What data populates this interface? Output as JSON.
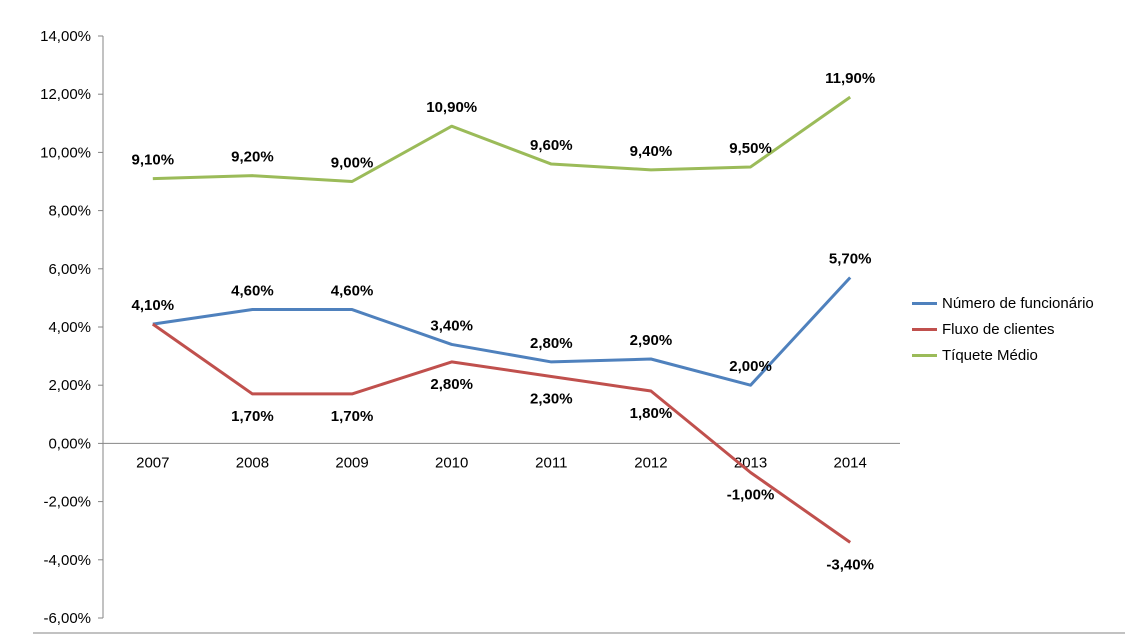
{
  "chart_data": {
    "type": "line",
    "categories": [
      "2007",
      "2008",
      "2009",
      "2010",
      "2011",
      "2012",
      "2013",
      "2014"
    ],
    "y_ticks": [
      "14,00%",
      "12,00%",
      "10,00%",
      "8,00%",
      "6,00%",
      "4,00%",
      "2,00%",
      "0,00%",
      "-2,00%",
      "-4,00%",
      "-6,00%"
    ],
    "ylim": [
      -6,
      14
    ],
    "legend_position": "right",
    "grid": false,
    "series": [
      {
        "name": "Número de funcionário",
        "color": "#4F81BD",
        "values": [
          4.1,
          4.6,
          4.6,
          3.4,
          2.8,
          2.9,
          2.0,
          5.7
        ],
        "labels": [
          "4,10%",
          "4,60%",
          "4,60%",
          "3,40%",
          "2,80%",
          "2,90%",
          "2,00%",
          "5,70%"
        ]
      },
      {
        "name": "Fluxo de clientes",
        "color": "#C0504D",
        "values": [
          4.1,
          1.7,
          1.7,
          2.8,
          2.3,
          1.8,
          -1.0,
          -3.4
        ],
        "labels": [
          "",
          "1,70%",
          "1,70%",
          "2,80%",
          "2,30%",
          "1,80%",
          "-1,00%",
          "-3,40%"
        ]
      },
      {
        "name": "Tíquete Médio",
        "color": "#9BBB59",
        "values": [
          9.1,
          9.2,
          9.0,
          10.9,
          9.6,
          9.4,
          9.5,
          11.9
        ],
        "labels": [
          "9,10%",
          "9,20%",
          "9,00%",
          "10,90%",
          "9,60%",
          "9,40%",
          "9,50%",
          "11,90%"
        ]
      }
    ]
  }
}
